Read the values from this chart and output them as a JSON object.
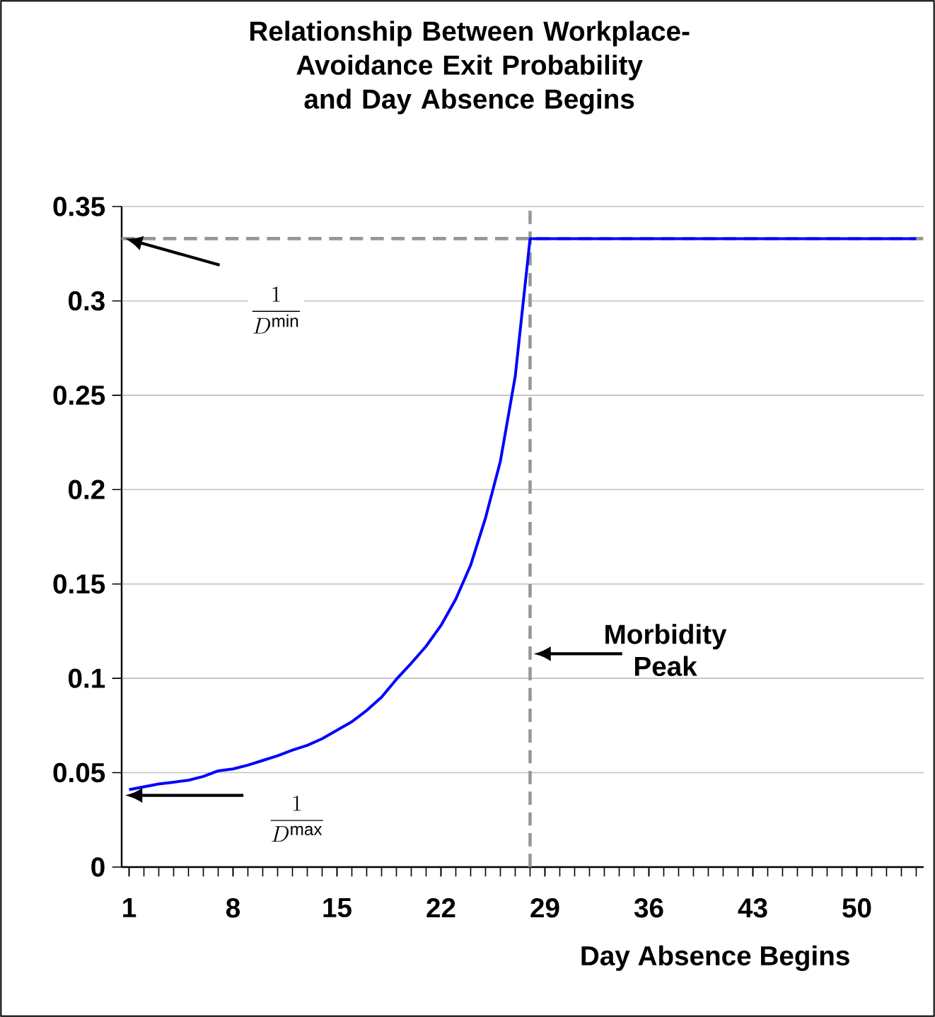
{
  "chart_data": {
    "type": "line",
    "title": "Relationship Between Workplace-Avoidance Exit Probability and Day Absence Begins",
    "xlabel": "Day  Absence Begins",
    "x": [
      1,
      2,
      3,
      4,
      5,
      6,
      7,
      8,
      9,
      10,
      11,
      12,
      13,
      14,
      15,
      16,
      17,
      18,
      19,
      20,
      21,
      22,
      23,
      24,
      25,
      26,
      27,
      28,
      54
    ],
    "series": [
      {
        "color": "#0000ff",
        "values": [
          0.041,
          0.0425,
          0.044,
          0.045,
          0.046,
          0.048,
          0.051,
          0.052,
          0.054,
          0.0565,
          0.059,
          0.062,
          0.0645,
          0.068,
          0.0725,
          0.077,
          0.083,
          0.09,
          0.0995,
          0.108,
          0.117,
          0.128,
          0.142,
          0.16,
          0.185,
          0.215,
          0.26,
          0.333,
          0.333
        ]
      }
    ],
    "xlim": [
      0.5,
      54.5
    ],
    "xticks": [
      1,
      8,
      15,
      22,
      29,
      36,
      43,
      50
    ],
    "ylim": [
      0,
      0.35
    ],
    "yticks": [
      0,
      0.05,
      0.1,
      0.15,
      0.2,
      0.25,
      0.3,
      0.35
    ],
    "grid": "y",
    "ref_lines": [
      {
        "axis": "y",
        "value": 0.333,
        "color": "#969696",
        "line_style": "dashed"
      },
      {
        "axis": "x",
        "value": 28,
        "color": "#969696",
        "line_style": "dashed"
      }
    ],
    "annotations": [
      "\\frac{1}{D^{\\mathrm{min}}}",
      "\\frac{1}{D^{\\mathrm{max}}}",
      "Morbidity Peak"
    ]
  }
}
